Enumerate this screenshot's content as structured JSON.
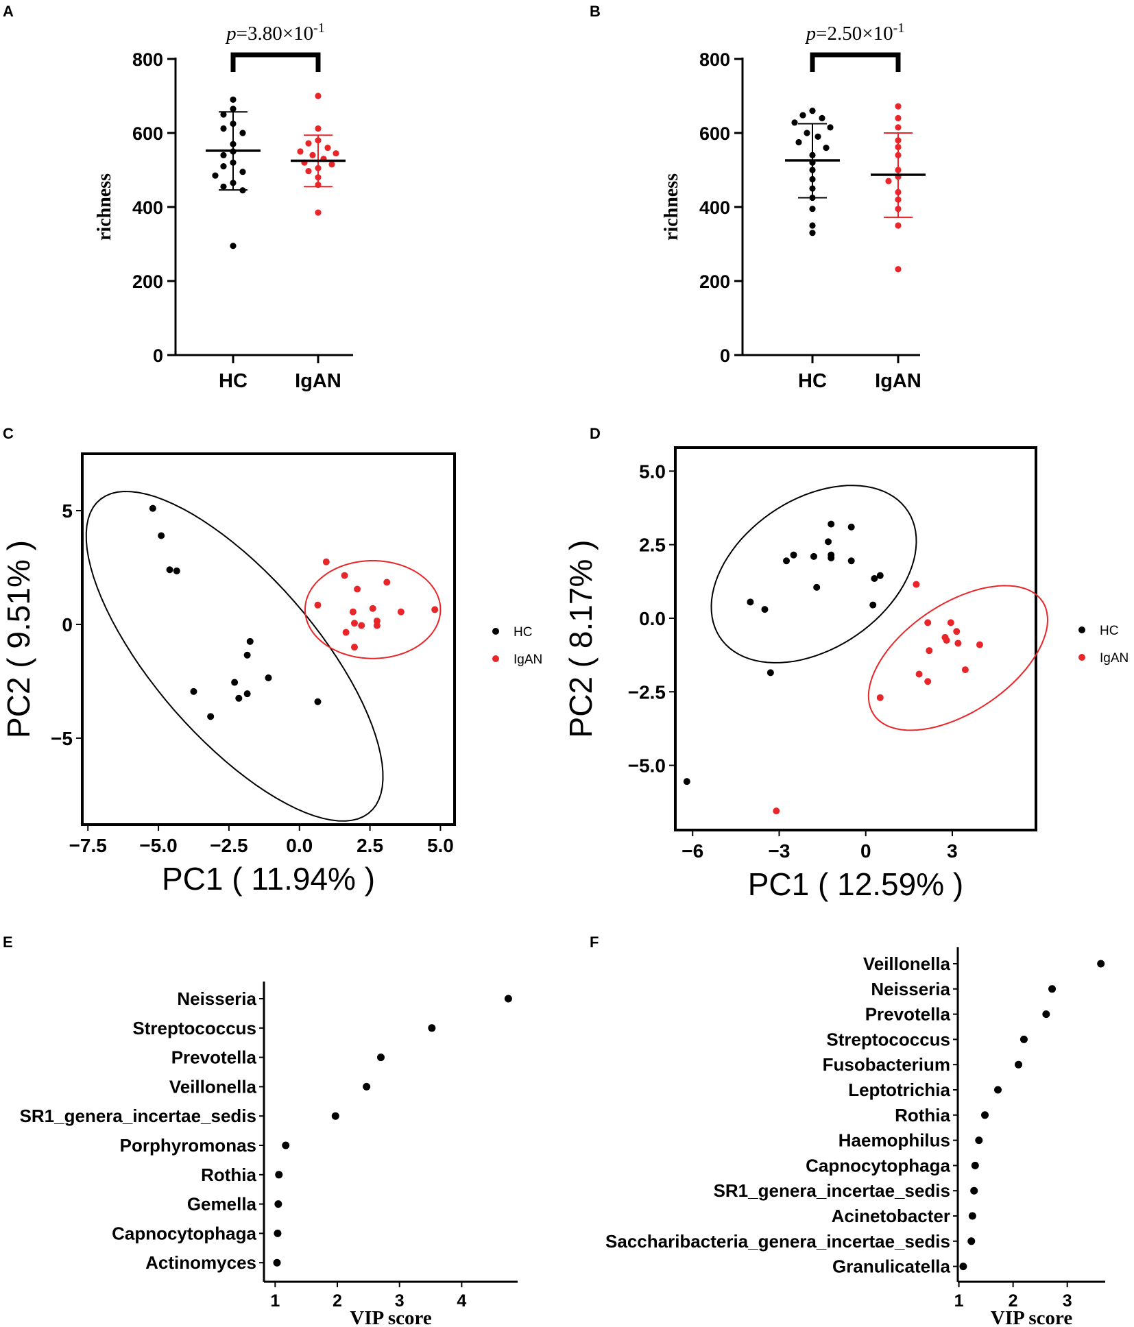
{
  "figure": {
    "panel_letters": [
      "A",
      "B",
      "C",
      "D",
      "E",
      "F"
    ]
  },
  "colors": {
    "hc": "#000000",
    "igan": "#e8262a",
    "axis": "#000000"
  },
  "chart_data": [
    {
      "id": "A",
      "type": "scatter",
      "subtype": "dot-plot-mean-sd",
      "ylabel": "richness",
      "ylim": [
        0,
        800
      ],
      "yticks": [
        0,
        200,
        400,
        600,
        800
      ],
      "categories": [
        "HC",
        "IgAN"
      ],
      "significance": {
        "prefix": "p",
        "text": "=3.80×10",
        "exp": "-1"
      },
      "series": [
        {
          "name": "HC",
          "color": "#000000",
          "mean": 552,
          "sd_low": 446,
          "sd_high": 657,
          "values": [
            690,
            665,
            650,
            625,
            612,
            600,
            570,
            550,
            540,
            520,
            510,
            495,
            485,
            465,
            455,
            445,
            295
          ]
        },
        {
          "name": "IgAN",
          "color": "#e8262a",
          "mean": 525,
          "sd_low": 455,
          "sd_high": 594,
          "values": [
            700,
            612,
            580,
            572,
            560,
            550,
            545,
            540,
            530,
            520,
            515,
            505,
            497,
            480,
            460,
            385
          ]
        }
      ]
    },
    {
      "id": "B",
      "type": "scatter",
      "subtype": "dot-plot-mean-sd",
      "ylabel": "richness",
      "ylim": [
        0,
        800
      ],
      "yticks": [
        0,
        200,
        400,
        600,
        800
      ],
      "categories": [
        "HC",
        "IgAN"
      ],
      "significance": {
        "prefix": "p",
        "text": "=2.50×10",
        "exp": "-1"
      },
      "series": [
        {
          "name": "HC",
          "color": "#000000",
          "mean": 526,
          "sd_low": 425,
          "sd_high": 625,
          "values": [
            660,
            648,
            640,
            628,
            615,
            600,
            590,
            575,
            560,
            540,
            520,
            500,
            475,
            450,
            425,
            395,
            350,
            330
          ]
        },
        {
          "name": "IgAN",
          "color": "#e8262a",
          "mean": 487,
          "sd_low": 372,
          "sd_high": 600,
          "values": [
            672,
            640,
            615,
            580,
            562,
            540,
            500,
            482,
            470,
            440,
            420,
            395,
            350,
            232
          ]
        }
      ]
    },
    {
      "id": "C",
      "type": "scatter",
      "subtype": "pca",
      "xlabel": "PC1 ( 11.94% )",
      "ylabel": "PC2 ( 9.51% )",
      "xlim": [
        -7.7,
        5.5
      ],
      "ylim": [
        -8.8,
        7.5
      ],
      "xticks": [
        -7.5,
        -5.0,
        -2.5,
        0.0,
        2.5,
        5.0
      ],
      "xtick_labels": [
        "−7.5",
        "−5.0",
        "−2.5",
        "0.0",
        "2.5",
        "5.0"
      ],
      "yticks": [
        -5,
        0,
        5
      ],
      "ytick_labels": [
        "−5",
        "0",
        "5"
      ],
      "legend": [
        "HC",
        "IgAN"
      ],
      "legend_placement": "right",
      "series": [
        {
          "name": "HC",
          "color": "#000000",
          "points": [
            [
              -5.2,
              5.1
            ],
            [
              -4.9,
              3.9
            ],
            [
              -4.6,
              2.4
            ],
            [
              -4.35,
              2.35
            ],
            [
              -1.75,
              -0.75
            ],
            [
              -1.85,
              -1.35
            ],
            [
              -3.75,
              -2.95
            ],
            [
              -3.15,
              -4.05
            ],
            [
              -2.3,
              -2.55
            ],
            [
              -2.15,
              -3.25
            ],
            [
              -1.85,
              -3.05
            ],
            [
              -1.1,
              -2.35
            ],
            [
              0.65,
              -3.4
            ]
          ],
          "ellipse": {
            "cx": -2.3,
            "cy": -1.4,
            "rx": 8.4,
            "ry": 3.1,
            "angle_deg": -57
          }
        },
        {
          "name": "IgAN",
          "color": "#e8262a",
          "points": [
            [
              0.95,
              2.75
            ],
            [
              1.6,
              2.15
            ],
            [
              2.05,
              1.55
            ],
            [
              3.1,
              1.85
            ],
            [
              0.65,
              0.85
            ],
            [
              1.9,
              0.55
            ],
            [
              2.6,
              0.7
            ],
            [
              3.6,
              0.55
            ],
            [
              4.8,
              0.65
            ],
            [
              1.65,
              -0.35
            ],
            [
              1.95,
              0.05
            ],
            [
              2.2,
              -0.05
            ],
            [
              2.75,
              0.15
            ],
            [
              2.75,
              -0.05
            ],
            [
              1.95,
              -1.0
            ]
          ],
          "ellipse": {
            "cx": 2.6,
            "cy": 0.65,
            "rx": 2.4,
            "ry": 2.15,
            "angle_deg": 0
          }
        }
      ]
    },
    {
      "id": "D",
      "type": "scatter",
      "subtype": "pca",
      "xlabel": "PC1 ( 12.59% )",
      "ylabel": "PC2 ( 8.17% )",
      "xlim": [
        -6.6,
        5.9
      ],
      "ylim": [
        -7.2,
        5.8
      ],
      "xticks": [
        -6,
        -3,
        0,
        3
      ],
      "xtick_labels": [
        "−6",
        "−3",
        "0",
        "3"
      ],
      "yticks": [
        -5.0,
        -2.5,
        0.0,
        2.5,
        5.0
      ],
      "ytick_labels": [
        "−5.0",
        "−2.5",
        "0.0",
        "2.5",
        "5.0"
      ],
      "legend": [
        "HC",
        "IgAN"
      ],
      "legend_placement": "right",
      "series": [
        {
          "name": "HC",
          "color": "#000000",
          "points": [
            [
              -1.2,
              3.2
            ],
            [
              -0.5,
              3.1
            ],
            [
              -1.3,
              2.6
            ],
            [
              -2.5,
              2.15
            ],
            [
              -2.75,
              1.95
            ],
            [
              -1.8,
              2.1
            ],
            [
              -1.2,
              2.05
            ],
            [
              -1.2,
              2.15
            ],
            [
              -0.5,
              1.95
            ],
            [
              0.3,
              1.35
            ],
            [
              0.5,
              1.45
            ],
            [
              -1.7,
              1.05
            ],
            [
              -4.0,
              0.55
            ],
            [
              -3.5,
              0.3
            ],
            [
              0.25,
              0.45
            ],
            [
              -3.3,
              -1.85
            ],
            [
              -6.2,
              -5.55
            ]
          ],
          "ellipse": {
            "cx": -1.8,
            "cy": 1.5,
            "rx": 3.9,
            "ry": 2.55,
            "angle_deg": 33
          }
        },
        {
          "name": "IgAN",
          "color": "#e8262a",
          "points": [
            [
              1.75,
              1.15
            ],
            [
              2.15,
              -0.15
            ],
            [
              2.95,
              -0.15
            ],
            [
              3.15,
              -0.45
            ],
            [
              2.75,
              -0.65
            ],
            [
              2.8,
              -0.75
            ],
            [
              3.2,
              -0.85
            ],
            [
              3.95,
              -0.9
            ],
            [
              2.2,
              -1.1
            ],
            [
              1.85,
              -1.9
            ],
            [
              2.15,
              -2.15
            ],
            [
              3.45,
              -1.75
            ],
            [
              0.5,
              -2.7
            ],
            [
              -3.1,
              -6.55
            ]
          ],
          "ellipse": {
            "cx": 3.2,
            "cy": -1.35,
            "rx": 3.5,
            "ry": 1.85,
            "angle_deg": 33
          }
        }
      ]
    },
    {
      "id": "E",
      "type": "scatter",
      "subtype": "vip-dot",
      "xlabel": "VIP score",
      "xlim": [
        0.82,
        4.9
      ],
      "xticks": [
        1,
        2,
        3,
        4
      ],
      "categories": [
        "Neisseria",
        "Streptococcus",
        "Prevotella",
        "Veillonella",
        "SR1_genera_incertae_sedis",
        "Porphyromonas",
        "Rothia",
        "Gemella",
        "Capnocytophaga",
        "Actinomyces"
      ],
      "values": [
        4.75,
        3.52,
        2.7,
        2.47,
        1.97,
        1.17,
        1.06,
        1.05,
        1.04,
        1.03
      ]
    },
    {
      "id": "F",
      "type": "scatter",
      "subtype": "vip-dot",
      "xlabel": "VIP score",
      "xlim": [
        0.98,
        3.7
      ],
      "xticks": [
        1,
        2,
        3
      ],
      "categories": [
        "Veillonella",
        "Neisseria",
        "Prevotella",
        "Streptococcus",
        "Fusobacterium",
        "Leptotrichia",
        "Rothia",
        "Haemophilus",
        "Capnocytophaga",
        "SR1_genera_incertae_sedis",
        "Acinetobacter",
        "Saccharibacteria_genera_incertae_sedis",
        "Granulicatella"
      ],
      "values": [
        3.62,
        2.72,
        2.61,
        2.2,
        2.1,
        1.72,
        1.48,
        1.37,
        1.3,
        1.28,
        1.25,
        1.23,
        1.08
      ]
    }
  ]
}
